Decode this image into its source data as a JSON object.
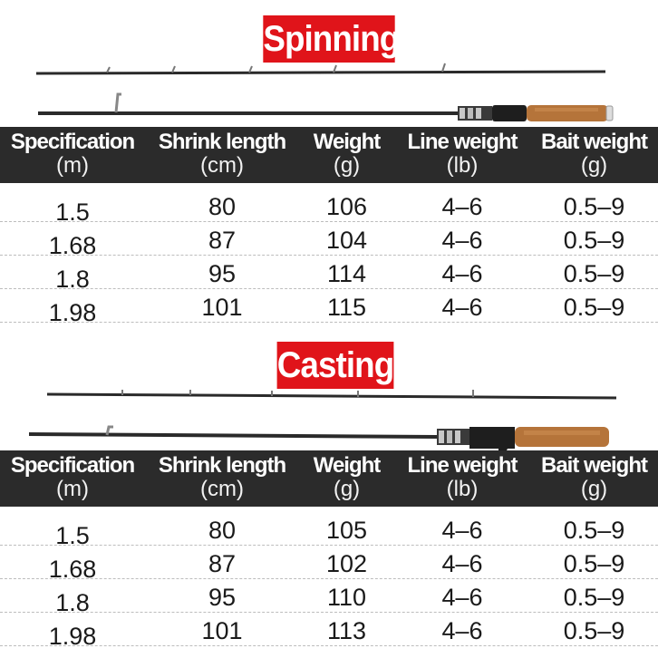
{
  "spinning": {
    "title": "Spinning",
    "headers": [
      {
        "name": "Specification",
        "unit": "(m)"
      },
      {
        "name": "Shrink length",
        "unit": "(cm)"
      },
      {
        "name": "Weight",
        "unit": "(g)"
      },
      {
        "name": "Line weight",
        "unit": "(lb)"
      },
      {
        "name": "Bait weight",
        "unit": "(g)"
      }
    ],
    "rows": [
      [
        "1.5",
        "80",
        "106",
        "4–6",
        "0.5–9"
      ],
      [
        "1.68",
        "87",
        "104",
        "4–6",
        "0.5–9"
      ],
      [
        "1.8",
        "95",
        "114",
        "4–6",
        "0.5–9"
      ],
      [
        "1.98",
        "101",
        "115",
        "4–6",
        "0.5–9"
      ]
    ]
  },
  "casting": {
    "title": "Casting",
    "headers": [
      {
        "name": "Specification",
        "unit": "(m)"
      },
      {
        "name": "Shrink length",
        "unit": "(cm)"
      },
      {
        "name": "Weight",
        "unit": "(g)"
      },
      {
        "name": "Line weight",
        "unit": "(lb)"
      },
      {
        "name": "Bait weight",
        "unit": "(g)"
      }
    ],
    "rows": [
      [
        "1.5",
        "80",
        "105",
        "4–6",
        "0.5–9"
      ],
      [
        "1.68",
        "87",
        "102",
        "4–6",
        "0.5–9"
      ],
      [
        "1.8",
        "95",
        "110",
        "4–6",
        "0.5–9"
      ],
      [
        "1.98",
        "101",
        "113",
        "4–6",
        "0.5–9"
      ]
    ]
  },
  "colors": {
    "badge": "#e0141a",
    "header_bg": "#2b2b2b",
    "cork": "#b5743a"
  }
}
